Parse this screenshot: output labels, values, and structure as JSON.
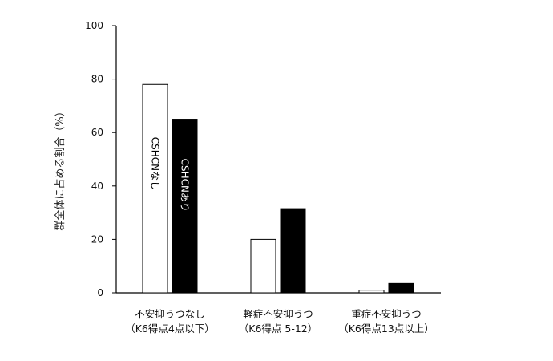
{
  "chart_data": {
    "type": "bar",
    "ylabel": "群全体に占める割合（%）",
    "ylim": [
      0,
      100
    ],
    "yticks": [
      0,
      20,
      40,
      60,
      80,
      100
    ],
    "categories": [
      [
        "不安抑うつなし",
        "（K6得点4点以下）"
      ],
      [
        "軽症不安抑うつ",
        "（K6得点 5-12）"
      ],
      [
        "重症不安抑うつ",
        "（K6得点13点以上）"
      ]
    ],
    "series": [
      {
        "name": "CSHCNなし",
        "color": "#ffffff",
        "label_color": "#000000",
        "values": [
          78,
          20,
          1
        ]
      },
      {
        "name": "CSHCNあり",
        "color": "#000000",
        "label_color": "#ffffff",
        "values": [
          65,
          31.5,
          3.5
        ]
      }
    ],
    "grid": false,
    "legend": "inside-first-group-bars"
  }
}
